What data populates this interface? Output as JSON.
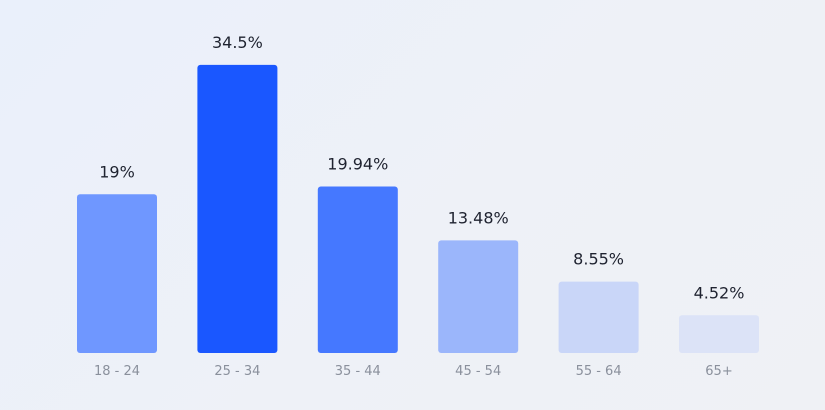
{
  "chart_data": {
    "type": "bar",
    "title": "",
    "xlabel": "",
    "ylabel": "",
    "categories": [
      "18 - 24",
      "25 - 34",
      "35 - 44",
      "45 - 54",
      "55 - 64",
      "65+"
    ],
    "values": [
      19,
      34.5,
      19.94,
      13.48,
      8.55,
      4.52
    ],
    "value_labels": [
      "19%",
      "34.5%",
      "19.94%",
      "13.48%",
      "8.55%",
      "4.52%"
    ],
    "unit": "%",
    "ylim": [
      0,
      37
    ],
    "grid": false,
    "legend": "none",
    "bar_colors": [
      "#6f97ff",
      "#1a57ff",
      "#4578ff",
      "#9bb6fb",
      "#c9d6f8",
      "#dce3f7"
    ],
    "colors": {
      "value_text": "#1f2330",
      "category_text": "#8a909c",
      "background": "#ecf0f8"
    }
  }
}
